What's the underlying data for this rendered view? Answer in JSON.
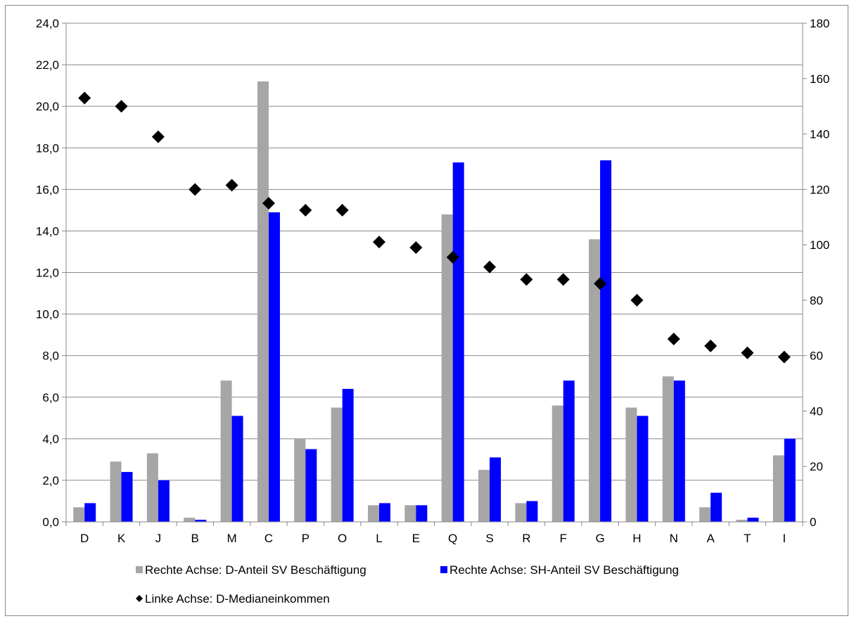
{
  "chart_data": {
    "type": "bar",
    "categories": [
      "D",
      "K",
      "J",
      "B",
      "M",
      "C",
      "P",
      "O",
      "L",
      "E",
      "Q",
      "S",
      "R",
      "F",
      "G",
      "H",
      "N",
      "A",
      "T",
      "I"
    ],
    "series": [
      {
        "name": "Rechte Achse: D-Anteil SV Beschäftigung",
        "type": "bar",
        "axis": "right",
        "color": "#a6a6a6",
        "values": [
          0.7,
          2.9,
          3.3,
          0.2,
          6.8,
          21.2,
          4.0,
          5.5,
          0.8,
          0.8,
          14.8,
          2.5,
          0.9,
          5.6,
          13.6,
          5.5,
          7.0,
          0.7,
          0.1,
          3.2
        ]
      },
      {
        "name": "Rechte Achse: SH-Anteil SV Beschäftigung",
        "type": "bar",
        "axis": "right",
        "color": "#0000ff",
        "values": [
          0.9,
          2.4,
          2.0,
          0.1,
          5.1,
          14.9,
          3.5,
          6.4,
          0.9,
          0.8,
          17.3,
          3.1,
          1.0,
          6.8,
          17.4,
          5.1,
          6.8,
          1.4,
          0.2,
          4.0
        ]
      },
      {
        "name": "Linke Achse: D-Medianeinkommen",
        "type": "scatter",
        "axis": "left",
        "color": "#000000",
        "values": [
          153,
          150,
          139,
          120,
          121.5,
          115,
          112.5,
          112.5,
          101,
          99,
          95.5,
          92,
          87.5,
          87.5,
          86,
          80,
          66,
          63.5,
          61,
          59.5
        ]
      }
    ],
    "left_axis": {
      "ticks": [
        "0,0",
        "2,0",
        "4,0",
        "6,0",
        "8,0",
        "10,0",
        "12,0",
        "14,0",
        "16,0",
        "18,0",
        "20,0",
        "22,0",
        "24,0"
      ],
      "range": [
        0,
        24
      ]
    },
    "right_axis": {
      "ticks": [
        "0",
        "20",
        "40",
        "60",
        "80",
        "100",
        "120",
        "140",
        "160",
        "180"
      ],
      "range": [
        0,
        180
      ]
    },
    "grid": true,
    "legend_position": "bottom"
  }
}
